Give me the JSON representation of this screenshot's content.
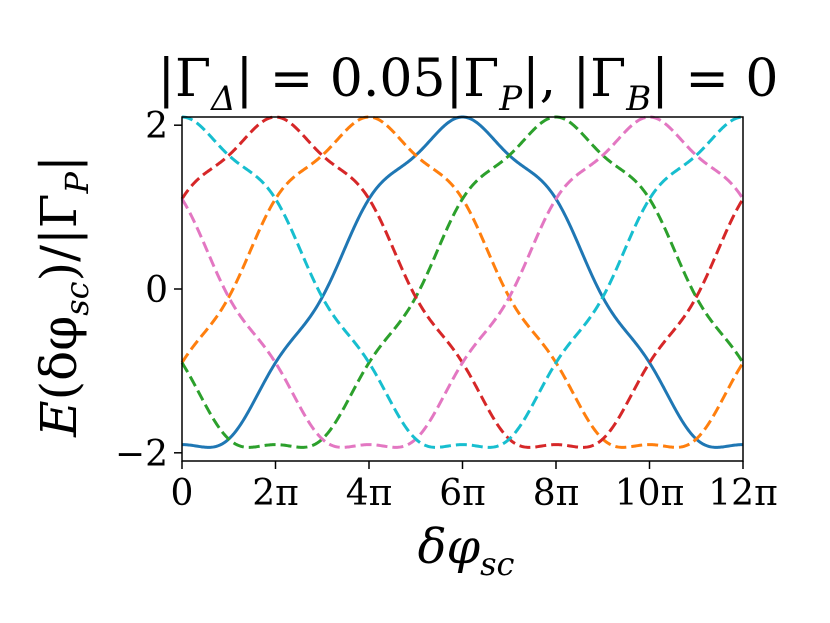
{
  "chart_data": {
    "type": "line",
    "title": {
      "t1": "|Γ",
      "s1": "Δ",
      "t2": "| = 0.05|Γ",
      "s2": "P",
      "t3": "|, |Γ",
      "s3": "B",
      "t4": "| = 0"
    },
    "ylabel": {
      "t1": "E",
      "t2": "(δφ",
      "s1": "sc",
      "t3": ")/|Γ",
      "s2": "P",
      "t4": "|"
    },
    "xlabel": {
      "t1": "δφ",
      "s1": "sc"
    },
    "xlim_over_pi": [
      0,
      12
    ],
    "ylim": [
      -2.1,
      2.1
    ],
    "xticks": [
      {
        "v": 0,
        "label": "0"
      },
      {
        "v": 2,
        "label": "2π"
      },
      {
        "v": 4,
        "label": "4π"
      },
      {
        "v": 6,
        "label": "6π"
      },
      {
        "v": 8,
        "label": "8π"
      },
      {
        "v": 10,
        "label": "10π"
      },
      {
        "v": 12,
        "label": "12π"
      }
    ],
    "yticks": [
      {
        "v": -2,
        "label": "−2"
      },
      {
        "v": 0,
        "label": "0"
      },
      {
        "v": 2,
        "label": "2"
      }
    ],
    "band_model": {
      "period_over_pi": 12,
      "amplitude": 2.0,
      "ripple_amplitude": 0.1,
      "ripple_period_over_pi": 2
    },
    "series": [
      {
        "key": "s0",
        "peak_over_pi": 6,
        "color": "#1f77b4",
        "style": "solid"
      },
      {
        "key": "s1",
        "peak_over_pi": 4,
        "color": "#ff7f0e",
        "style": "dashed"
      },
      {
        "key": "s2",
        "peak_over_pi": 8,
        "color": "#2ca02c",
        "style": "dashed"
      },
      {
        "key": "s3",
        "peak_over_pi": 2,
        "color": "#d62728",
        "style": "dashed"
      },
      {
        "key": "s4",
        "peak_over_pi": 10,
        "color": "#e377c2",
        "style": "dashed"
      },
      {
        "key": "s5",
        "peak_over_pi": 0,
        "color": "#17becf",
        "style": "dashed"
      }
    ]
  }
}
